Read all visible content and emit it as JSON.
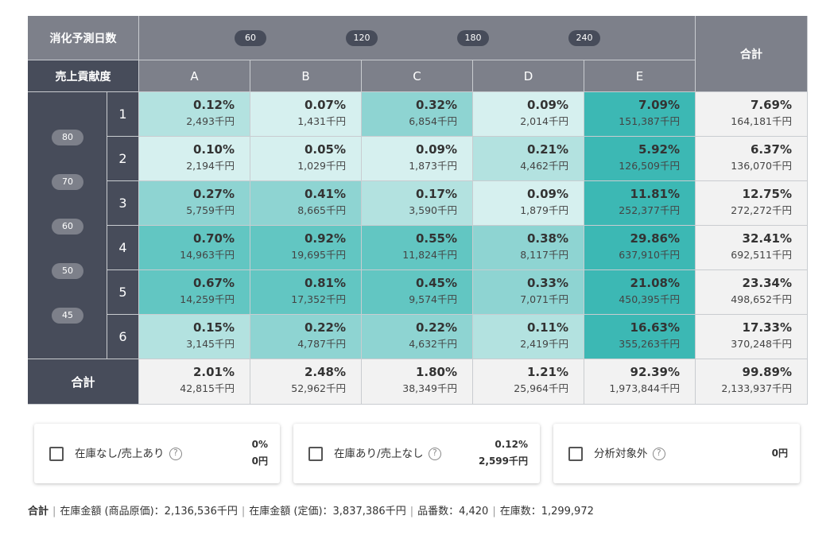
{
  "header": {
    "days_label": "消化予測日数",
    "contribution_label": "売上貢献度",
    "total_label": "合計",
    "day_thresholds": [
      "60",
      "120",
      "180",
      "240"
    ],
    "columns": [
      "A",
      "B",
      "C",
      "D",
      "E"
    ],
    "contribution_thresholds": [
      "80",
      "70",
      "60",
      "50",
      "45"
    ]
  },
  "rows": [
    {
      "label": "1",
      "cells": [
        {
          "pct": "0.12%",
          "amt": "2,493千円"
        },
        {
          "pct": "0.07%",
          "amt": "1,431千円"
        },
        {
          "pct": "0.32%",
          "amt": "6,854千円"
        },
        {
          "pct": "0.09%",
          "amt": "2,014千円"
        },
        {
          "pct": "7.09%",
          "amt": "151,387千円"
        }
      ],
      "total": {
        "pct": "7.69%",
        "amt": "164,181千円"
      }
    },
    {
      "label": "2",
      "cells": [
        {
          "pct": "0.10%",
          "amt": "2,194千円"
        },
        {
          "pct": "0.05%",
          "amt": "1,029千円"
        },
        {
          "pct": "0.09%",
          "amt": "1,873千円"
        },
        {
          "pct": "0.21%",
          "amt": "4,462千円"
        },
        {
          "pct": "5.92%",
          "amt": "126,509千円"
        }
      ],
      "total": {
        "pct": "6.37%",
        "amt": "136,070千円"
      }
    },
    {
      "label": "3",
      "cells": [
        {
          "pct": "0.27%",
          "amt": "5,759千円"
        },
        {
          "pct": "0.41%",
          "amt": "8,665千円"
        },
        {
          "pct": "0.17%",
          "amt": "3,590千円"
        },
        {
          "pct": "0.09%",
          "amt": "1,879千円"
        },
        {
          "pct": "11.81%",
          "amt": "252,377千円"
        }
      ],
      "total": {
        "pct": "12.75%",
        "amt": "272,272千円"
      }
    },
    {
      "label": "4",
      "cells": [
        {
          "pct": "0.70%",
          "amt": "14,963千円"
        },
        {
          "pct": "0.92%",
          "amt": "19,695千円"
        },
        {
          "pct": "0.55%",
          "amt": "11,824千円"
        },
        {
          "pct": "0.38%",
          "amt": "8,117千円"
        },
        {
          "pct": "29.86%",
          "amt": "637,910千円"
        }
      ],
      "total": {
        "pct": "32.41%",
        "amt": "692,511千円"
      }
    },
    {
      "label": "5",
      "cells": [
        {
          "pct": "0.67%",
          "amt": "14,259千円"
        },
        {
          "pct": "0.81%",
          "amt": "17,352千円"
        },
        {
          "pct": "0.45%",
          "amt": "9,574千円"
        },
        {
          "pct": "0.33%",
          "amt": "7,071千円"
        },
        {
          "pct": "21.08%",
          "amt": "450,395千円"
        }
      ],
      "total": {
        "pct": "23.34%",
        "amt": "498,652千円"
      }
    },
    {
      "label": "6",
      "cells": [
        {
          "pct": "0.15%",
          "amt": "3,145千円"
        },
        {
          "pct": "0.22%",
          "amt": "4,787千円"
        },
        {
          "pct": "0.22%",
          "amt": "4,632千円"
        },
        {
          "pct": "0.11%",
          "amt": "2,419千円"
        },
        {
          "pct": "16.63%",
          "amt": "355,263千円"
        }
      ],
      "total": {
        "pct": "17.33%",
        "amt": "370,248千円"
      }
    }
  ],
  "totals_row": {
    "label": "合計",
    "cells": [
      {
        "pct": "2.01%",
        "amt": "42,815千円"
      },
      {
        "pct": "2.48%",
        "amt": "52,962千円"
      },
      {
        "pct": "1.80%",
        "amt": "38,349千円"
      },
      {
        "pct": "1.21%",
        "amt": "25,964千円"
      },
      {
        "pct": "92.39%",
        "amt": "1,973,844千円"
      }
    ],
    "total": {
      "pct": "99.89%",
      "amt": "2,133,937千円"
    }
  },
  "colors": {
    "shade_1": "#d6f0ef",
    "shade_2": "#b3e2e0",
    "shade_3": "#8ed4d2",
    "shade_4": "#62c6c2",
    "shade_5": "#3cb8b4",
    "total_bg": "#f2f2f2",
    "header_gray": "#7d808a",
    "header_dark": "#474c5a"
  },
  "filters": [
    {
      "label": "在庫なし/売上あり",
      "help": "?",
      "pct": "0%",
      "amt": "0円"
    },
    {
      "label": "在庫あり/売上なし",
      "help": "?",
      "pct": "0.12%",
      "amt": "2,599千円"
    },
    {
      "label": "分析対象外",
      "help": "?",
      "pct": "",
      "amt": "0円"
    }
  ],
  "summary": {
    "title": "合計",
    "cost_value": "在庫金額 (商品原価)：2,136,536千円",
    "list_value": "在庫金額 (定価)：3,837,386千円",
    "sku_count": "品番数：4,420",
    "stock_count": "在庫数：1,299,972"
  }
}
